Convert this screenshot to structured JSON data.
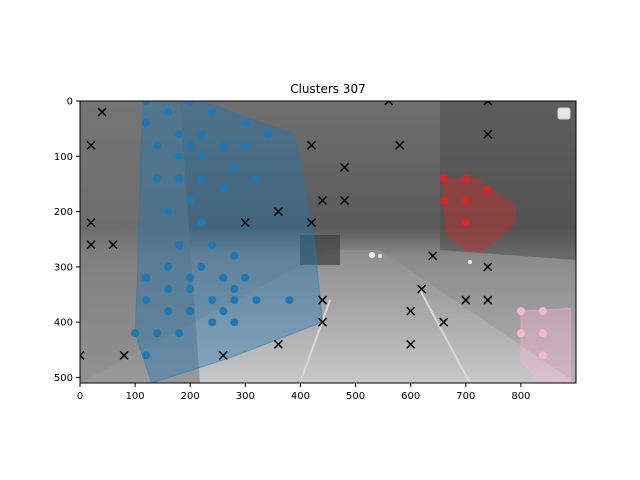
{
  "chart_data": {
    "type": "scatter",
    "title": "Clusters 307",
    "xlabel": "",
    "ylabel": "",
    "xlim": [
      0,
      900
    ],
    "ylim": [
      510,
      0
    ],
    "x_ticks": [
      0,
      100,
      200,
      300,
      400,
      500,
      600,
      700,
      800
    ],
    "y_ticks": [
      0,
      100,
      200,
      300,
      400,
      500
    ],
    "background": "grayscale night street photograph behind the plot",
    "legend": {
      "placement": "top-right",
      "entries": []
    },
    "colors": {
      "cluster_blue": "#1f77b4",
      "cluster_red": "#d62728",
      "cluster_pink": "#f7b6d2",
      "noise": "#000000"
    },
    "clusters": [
      {
        "color": "#1f77b4",
        "points": [
          [
            120,
            0
          ],
          [
            200,
            0
          ],
          [
            160,
            20
          ],
          [
            240,
            20
          ],
          [
            120,
            40
          ],
          [
            300,
            40
          ],
          [
            180,
            60
          ],
          [
            220,
            60
          ],
          [
            340,
            60
          ],
          [
            140,
            80
          ],
          [
            200,
            80
          ],
          [
            260,
            80
          ],
          [
            300,
            80
          ],
          [
            180,
            100
          ],
          [
            220,
            100
          ],
          [
            280,
            120
          ],
          [
            140,
            140
          ],
          [
            180,
            140
          ],
          [
            220,
            140
          ],
          [
            320,
            140
          ],
          [
            260,
            160
          ],
          [
            200,
            180
          ],
          [
            160,
            200
          ],
          [
            220,
            220
          ],
          [
            180,
            260
          ],
          [
            240,
            260
          ],
          [
            280,
            280
          ],
          [
            160,
            300
          ],
          [
            220,
            300
          ],
          [
            120,
            320
          ],
          [
            200,
            320
          ],
          [
            260,
            320
          ],
          [
            300,
            320
          ],
          [
            160,
            340
          ],
          [
            200,
            340
          ],
          [
            280,
            340
          ],
          [
            120,
            360
          ],
          [
            240,
            360
          ],
          [
            280,
            360
          ],
          [
            320,
            360
          ],
          [
            380,
            360
          ],
          [
            160,
            380
          ],
          [
            200,
            380
          ],
          [
            260,
            380
          ],
          [
            240,
            400
          ],
          [
            280,
            400
          ],
          [
            100,
            420
          ],
          [
            140,
            420
          ],
          [
            180,
            420
          ],
          [
            120,
            460
          ]
        ],
        "hull": [
          [
            115,
            -5
          ],
          [
            205,
            -5
          ],
          [
            390,
            60
          ],
          [
            425,
            250
          ],
          [
            440,
            400
          ],
          [
            270,
            465
          ],
          [
            130,
            510
          ],
          [
            100,
            420
          ],
          [
            105,
            300
          ],
          [
            110,
            100
          ]
        ]
      },
      {
        "color": "#d62728",
        "points": [
          [
            660,
            140
          ],
          [
            700,
            140
          ],
          [
            740,
            160
          ],
          [
            660,
            180
          ],
          [
            700,
            180
          ],
          [
            700,
            220
          ]
        ],
        "hull": [
          [
            662,
            140
          ],
          [
            720,
            140
          ],
          [
            745,
            160
          ],
          [
            790,
            190
          ],
          [
            790,
            220
          ],
          [
            730,
            270
          ],
          [
            700,
            270
          ],
          [
            665,
            240
          ],
          [
            660,
            185
          ]
        ]
      },
      {
        "color": "#f7b6d2",
        "points": [
          [
            800,
            380
          ],
          [
            840,
            380
          ],
          [
            800,
            420
          ],
          [
            840,
            420
          ],
          [
            840,
            460
          ]
        ],
        "hull": [
          [
            800,
            380
          ],
          [
            890,
            375
          ],
          [
            890,
            510
          ],
          [
            830,
            505
          ],
          [
            800,
            470
          ]
        ]
      }
    ],
    "noise": {
      "marker": "x",
      "color": "#000000",
      "points": [
        [
          40,
          20
        ],
        [
          20,
          80
        ],
        [
          20,
          220
        ],
        [
          20,
          260
        ],
        [
          60,
          260
        ],
        [
          0,
          460
        ],
        [
          80,
          460
        ],
        [
          260,
          460
        ],
        [
          300,
          220
        ],
        [
          360,
          200
        ],
        [
          360,
          440
        ],
        [
          420,
          80
        ],
        [
          420,
          220
        ],
        [
          440,
          180
        ],
        [
          440,
          360
        ],
        [
          440,
          400
        ],
        [
          480,
          120
        ],
        [
          480,
          180
        ],
        [
          560,
          0
        ],
        [
          580,
          80
        ],
        [
          600,
          380
        ],
        [
          600,
          440
        ],
        [
          620,
          340
        ],
        [
          640,
          280
        ],
        [
          660,
          400
        ],
        [
          700,
          360
        ],
        [
          740,
          0
        ],
        [
          740,
          60
        ],
        [
          740,
          300
        ],
        [
          740,
          360
        ]
      ]
    }
  }
}
